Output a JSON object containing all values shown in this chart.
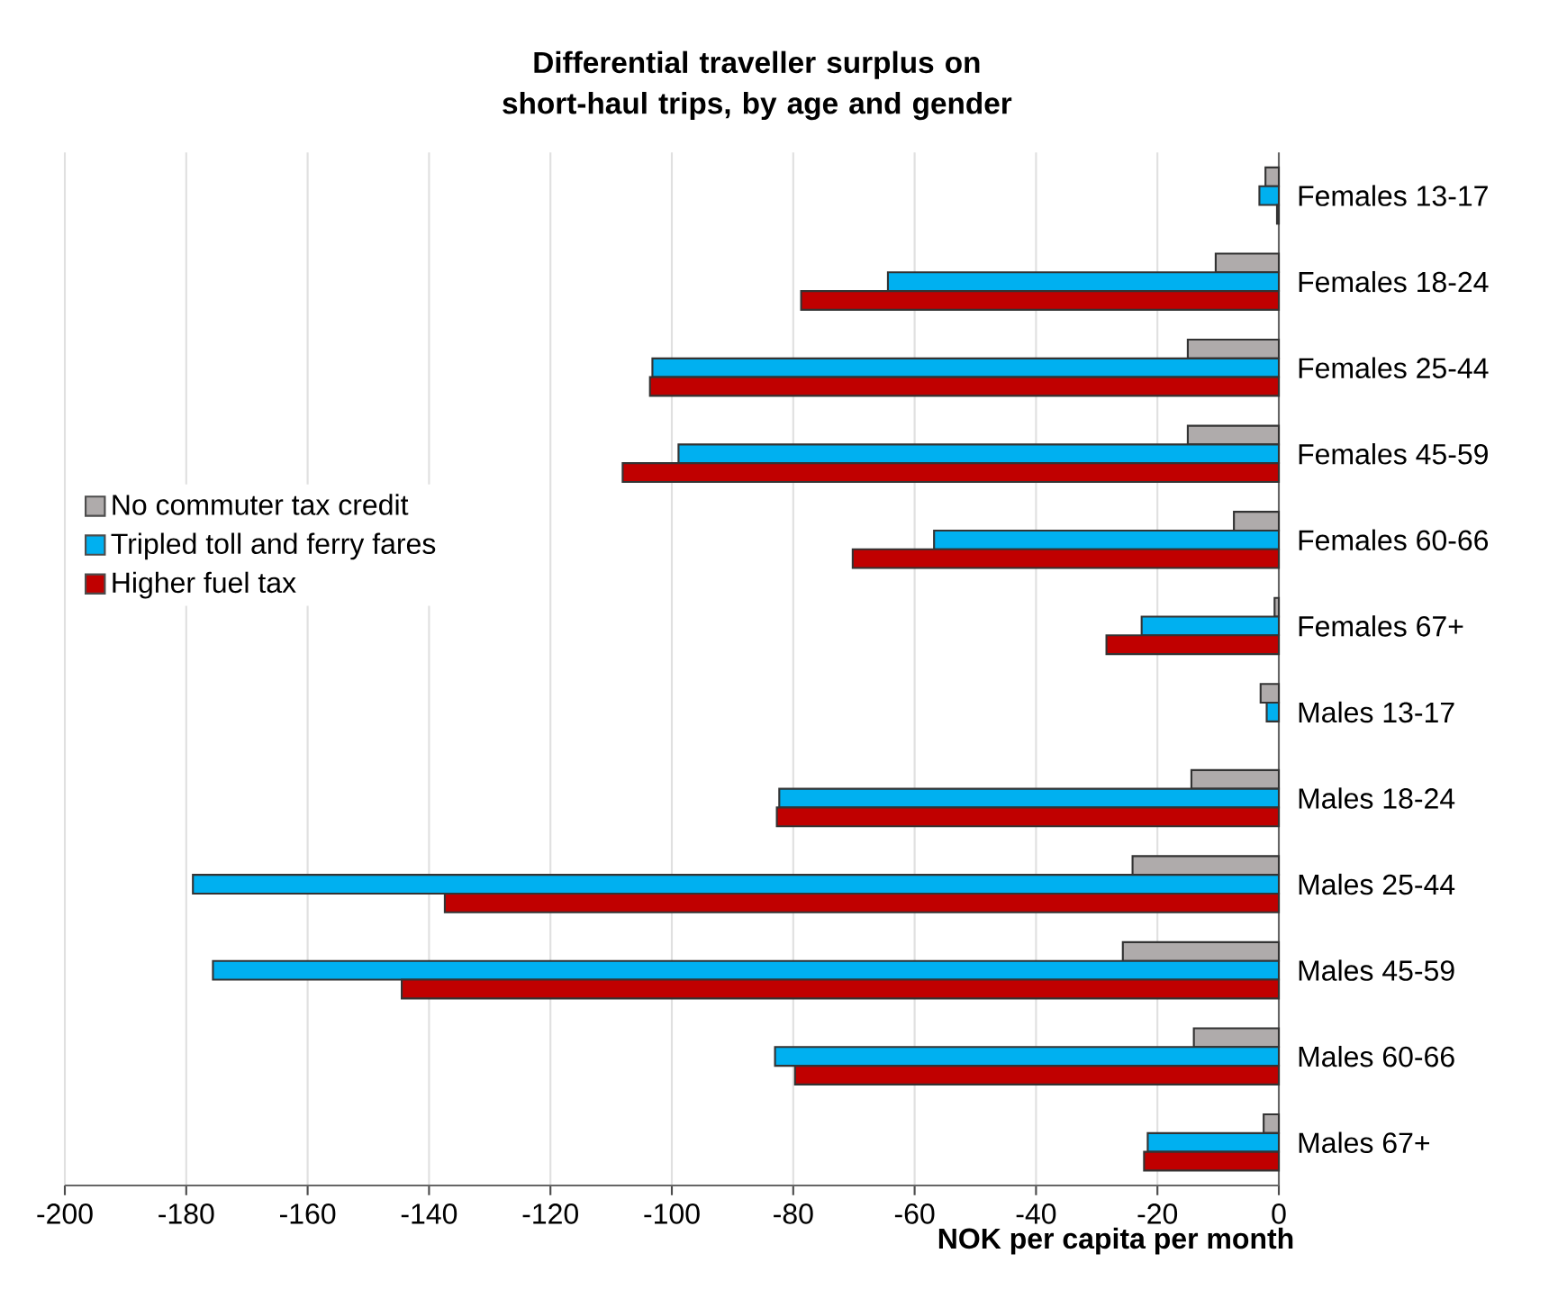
{
  "chart_data": {
    "type": "bar",
    "orientation": "horizontal",
    "title": "Differential traveller surplus on short-haul trips, by age and gender",
    "xlabel": "NOK per capita per month",
    "categories": [
      "Females 13-17",
      "Females 18-24",
      "Females 25-44",
      "Females 45-59",
      "Females 60-66",
      "Females 67+",
      "Males 13-17",
      "Males 18-24",
      "Males 25-44",
      "Males 45-59",
      "Males 60-66",
      "Males 67+"
    ],
    "series": [
      {
        "name": "No commuter tax credit",
        "color": "#afabab",
        "values": [
          -2.2,
          -10.4,
          -15.0,
          -15.0,
          -7.4,
          -0.7,
          -3.0,
          -14.4,
          -24.1,
          -25.7,
          -14.0,
          -2.5
        ]
      },
      {
        "name": "Tripled toll and ferry fares",
        "color": "#00b0f0",
        "values": [
          -3.2,
          -64.4,
          -103.2,
          -98.9,
          -56.8,
          -22.6,
          -2.0,
          -82.3,
          -178.9,
          -175.6,
          -83.0,
          -21.6
        ]
      },
      {
        "name": "Higher fuel tax",
        "color": "#c00000",
        "values": [
          -0.3,
          -78.7,
          -103.6,
          -108.1,
          -70.2,
          -28.4,
          null,
          -82.7,
          -137.4,
          -144.5,
          -79.7,
          -22.2
        ]
      }
    ],
    "xlim": [
      -200,
      0
    ],
    "xticks": [
      -200,
      -180,
      -160,
      -140,
      -120,
      -100,
      -80,
      -60,
      -40,
      -20,
      0
    ],
    "grid": "x",
    "legend": "left"
  }
}
